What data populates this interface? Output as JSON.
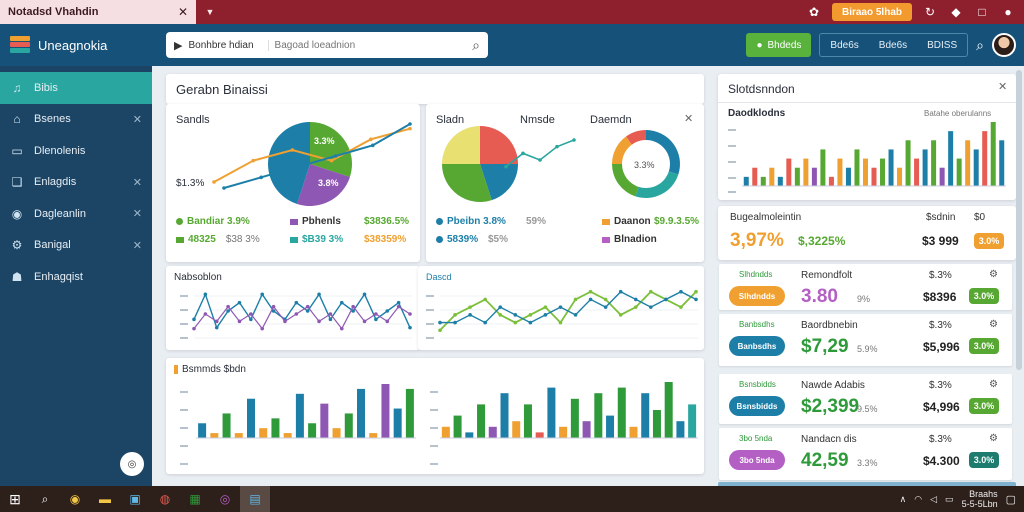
{
  "titlebar": {
    "tab_title": "Notadsd Vhahdin",
    "action_button": "Biraao 5lhab"
  },
  "header": {
    "app_name": "Uneagnokia",
    "search_scope": "Bonhbre hdian",
    "search_placeholder": "Bagoad loeadnion",
    "green_button": "Bhdeds",
    "group_buttons": [
      "Bde6s",
      "Bde6s",
      "BDISS"
    ]
  },
  "sidebar": {
    "items": [
      {
        "label": "Bibis",
        "icon": "chart-icon",
        "active": true
      },
      {
        "label": "Bsenes",
        "icon": "home-icon",
        "active": false
      },
      {
        "label": "Dlenolenis",
        "icon": "monitor-icon",
        "active": false
      },
      {
        "label": "Enlagdis",
        "icon": "document-icon",
        "active": false
      },
      {
        "label": "Dagleanlin",
        "icon": "settings-icon",
        "active": false
      },
      {
        "label": "Banigal",
        "icon": "gear-icon",
        "active": false
      },
      {
        "label": "Enhagqist",
        "icon": "people-icon",
        "active": false
      }
    ]
  },
  "main": {
    "section_title": "Gerabn Binaissi",
    "pie_card_a": {
      "title": "Sandls",
      "center_label": "$1.3%",
      "slice_labels": [
        "3.3%",
        "3.8%"
      ],
      "legend": [
        {
          "label": "Bandiar 3.9%",
          "color": "#57a832"
        },
        {
          "label": "Pbhenls",
          "color": "#8e57b3"
        },
        {
          "label": "$3836.5%",
          "color": "#57a832"
        },
        {
          "label": "48325",
          "color": "#57a832"
        },
        {
          "label": "$B39 3%",
          "color": "#2aa6a0"
        },
        {
          "label": "$38359%",
          "color": "#f0a030"
        }
      ],
      "legend_extra": "$38 3%"
    },
    "pie_card_b": {
      "title_left": "Sladn",
      "title_mid": "Nmsde",
      "title_right": "Daemdn",
      "donut_label": "3.3%",
      "legend": [
        {
          "label": "Pbeibn 3.8%",
          "color": "#1d7fa8"
        },
        {
          "label": "59%",
          "color": "#999999"
        },
        {
          "label": "Daanon",
          "color": "#f0a030"
        },
        {
          "label": "$9.9.3.5%",
          "color": "#57a832"
        },
        {
          "label": "5839%",
          "color": "#1d7fa8"
        },
        {
          "label": "$5%",
          "color": "#999999"
        },
        {
          "label": "Blnadion",
          "color": "#b45fc4"
        }
      ]
    },
    "line_card_a": {
      "title": "Nabsoblon"
    },
    "line_card_b": {
      "title": "Dascd"
    },
    "bar_card": {
      "title": "Bsmmds $bdn"
    }
  },
  "right": {
    "top_card_title": "Slotdsnndon",
    "top_chart_title": "Daodklodns",
    "top_chart_hint": "Batahe oberulanns",
    "summary": {
      "title": "Bugealmoleintin",
      "header_a": "$sdnin",
      "header_b": "$0",
      "big_value": "3,97%",
      "sub_value": "$,3225%",
      "amount": "$3 999",
      "pill": "3.0%"
    },
    "rows": [
      {
        "tag": "Slhdndds",
        "name": "Remondfolt",
        "big": "3.80",
        "big_suffix": "9%",
        "pct": "$.3%",
        "amount": "$8396",
        "pill": "3.0%",
        "tag_color": "#f0a030",
        "pill_color": "#57a832",
        "big_color": "#b45fc4"
      },
      {
        "tag": "Banbsdhs",
        "name": "Baordbnebin",
        "big": "$7,29",
        "big_suffix": "5.9%",
        "pct": "$.3%",
        "amount": "$5,996",
        "pill": "3.0%",
        "tag_color": "#1d7fa8",
        "pill_color": "#57a832",
        "big_color": "#2e9a3a"
      },
      {
        "tag": "Bsnsbidds",
        "name": "Nawde Adabis",
        "big": "$2,399",
        "big_suffix": "9.5%",
        "pct": "$.3%",
        "amount": "$4,996",
        "pill": "3.0%",
        "tag_color": "#1d7fa8",
        "pill_color": "#57a832",
        "big_color": "#2e9a3a"
      },
      {
        "tag": "3bo 5nda",
        "name": "Nandacn dis",
        "big": "42,59",
        "big_suffix": "3.3%",
        "pct": "$.3%",
        "amount": "$4.300",
        "pill": "3.0%",
        "tag_color": "#b45fc4",
        "pill_color": "#1d7c6e",
        "big_color": "#2e9a3a"
      }
    ]
  },
  "taskbar": {
    "time": "Braahs",
    "date": "5-5-5Lbn"
  },
  "chart_data": [
    {
      "type": "pie",
      "title": "Sandls",
      "values": [
        30,
        25,
        45
      ],
      "colors": [
        "#57a832",
        "#8e57b3",
        "#1d7fa8"
      ],
      "series": [
        {
          "values": [
            0,
            2,
            3,
            2,
            4,
            5
          ]
        },
        {
          "values": [
            0,
            1,
            2,
            3,
            4,
            6
          ]
        }
      ]
    },
    {
      "type": "pie",
      "title": "Sladn",
      "values": [
        25,
        20,
        30,
        25
      ],
      "colors": [
        "#e65b52",
        "#1d7fa8",
        "#57a832",
        "#e8e070"
      ],
      "series": [
        {
          "values": [
            2,
            4,
            3,
            5,
            6
          ]
        }
      ]
    },
    {
      "type": "pie",
      "title": "Daemdn",
      "values": [
        30,
        25,
        20,
        15,
        10
      ],
      "colors": [
        "#1d7fa8",
        "#2aa6a0",
        "#57a832",
        "#f0a030",
        "#e65b52"
      ]
    },
    {
      "type": "line",
      "title": "Nabsoblon",
      "series": [
        {
          "name": "",
          "values": [
            2,
            5,
            1,
            3,
            4,
            2,
            5,
            3,
            2,
            4,
            3,
            5,
            2,
            4,
            3,
            5,
            2,
            3,
            4,
            1
          ]
        },
        {
          "name": "",
          "values": [
            1,
            3,
            2,
            4,
            2,
            3,
            1,
            4,
            2,
            3,
            4,
            2,
            3,
            1,
            4,
            2,
            3,
            2,
            4,
            3
          ]
        }
      ]
    },
    {
      "type": "line",
      "title": "Dascd",
      "series": [
        {
          "name": "",
          "values": [
            1,
            3,
            4,
            5,
            3,
            2,
            3,
            4,
            2,
            5,
            6,
            5,
            3,
            4,
            6,
            5,
            4,
            6
          ]
        },
        {
          "name": "",
          "values": [
            2,
            2,
            3,
            2,
            4,
            3,
            2,
            3,
            4,
            3,
            5,
            4,
            6,
            5,
            4,
            5,
            6,
            5
          ]
        }
      ]
    },
    {
      "type": "bar",
      "title": "Bsmmds $bdn",
      "values": [
        3,
        1,
        5,
        1,
        8,
        2,
        4,
        1,
        9,
        3,
        7,
        2,
        5,
        10,
        1,
        11,
        6,
        10
      ],
      "colors": [
        "#1d7fa8",
        "#f0a030",
        "#2e9a3a",
        "#f0a030",
        "#1d7fa8",
        "#f0a030",
        "#2e9a3a",
        "#f0a030",
        "#1d7fa8",
        "#2e9a3a",
        "#8e57b3",
        "#f0a030",
        "#2e9a3a",
        "#1d7fa8",
        "#f0a030",
        "#8e57b3",
        "#1d7fa8",
        "#2e9a3a"
      ]
    },
    {
      "type": "bar",
      "values": [
        2,
        4,
        1,
        6,
        2,
        8,
        3,
        6,
        1,
        9,
        2,
        7,
        3,
        8,
        4,
        9,
        2,
        8,
        5,
        10,
        3,
        6
      ],
      "colors": [
        "#f0a030",
        "#2e9a3a",
        "#1d7fa8",
        "#2e9a3a",
        "#8e57b3",
        "#1d7fa8",
        "#f0a030",
        "#2e9a3a",
        "#e65b52",
        "#1d7fa8",
        "#f0a030",
        "#2e9a3a",
        "#8e57b3",
        "#2e9a3a",
        "#1d7fa8",
        "#2e9a3a",
        "#f0a030",
        "#1d7fa8",
        "#2e9a3a",
        "#2e9a3a",
        "#1d7fa8",
        "#2aa6a0"
      ]
    },
    {
      "type": "bar",
      "title": "Daodklodns",
      "values": [
        1,
        2,
        1,
        2,
        1,
        3,
        2,
        3,
        2,
        4,
        1,
        3,
        2,
        4,
        3,
        2,
        3,
        4,
        2,
        5,
        3,
        4,
        5,
        2,
        6,
        3,
        5,
        4,
        6,
        7,
        5
      ],
      "colors": [
        "#1d7fa8",
        "#e65b52",
        "#57a832",
        "#f0a030",
        "#1d7fa8",
        "#e65b52",
        "#57a832",
        "#f0a030",
        "#8e57b3",
        "#57a832",
        "#e65b52",
        "#f0a030",
        "#1d7fa8",
        "#57a832",
        "#f0a030",
        "#e65b52",
        "#57a832",
        "#1d7fa8",
        "#f0a030",
        "#57a832",
        "#e65b52",
        "#1d7fa8",
        "#57a832",
        "#8e57b3",
        "#1d7fa8",
        "#57a832",
        "#f0a030",
        "#1d7fa8",
        "#e65b52",
        "#57a832",
        "#1d7fa8"
      ]
    }
  ]
}
